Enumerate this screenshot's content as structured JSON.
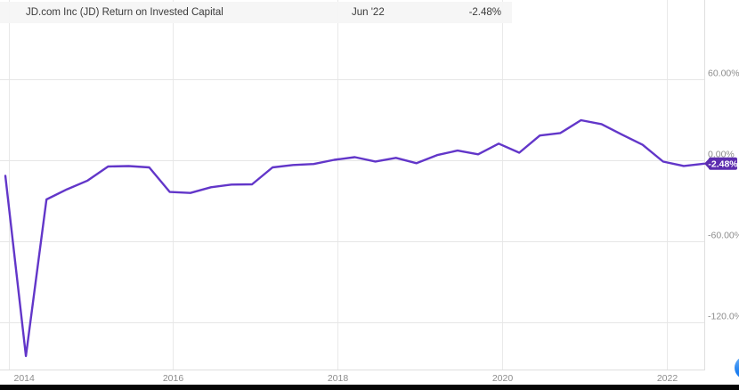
{
  "header": {
    "legend_label": "JD.com Inc (JD) Return on Invested Capital",
    "date_label": "Jun '22",
    "value_label": "-2.48%"
  },
  "badge": {
    "label": "-2.48%"
  },
  "chart_data": {
    "type": "line",
    "title": "JD.com Inc (JD) Return on Invested Capital",
    "series": [
      {
        "name": "JD.com Inc (JD) Return on Invested Capital",
        "unit": "%",
        "x": [
          "Dec '13",
          "Mar '14",
          "Jun '14",
          "Sep '14",
          "Dec '14",
          "Mar '15",
          "Jun '15",
          "Sep '15",
          "Dec '15",
          "Mar '16",
          "Jun '16",
          "Sep '16",
          "Dec '16",
          "Mar '17",
          "Jun '17",
          "Sep '17",
          "Dec '17",
          "Mar '18",
          "Jun '18",
          "Sep '18",
          "Dec '18",
          "Mar '19",
          "Jun '19",
          "Sep '19",
          "Dec '19",
          "Mar '20",
          "Jun '20",
          "Sep '20",
          "Dec '20",
          "Mar '21",
          "Jun '21",
          "Sep '21",
          "Dec '21",
          "Mar '22",
          "Jun '22"
        ],
        "values": [
          -11.5,
          -145,
          -29,
          -21.5,
          -15,
          -4.6,
          -4.3,
          -5.3,
          -23.5,
          -24.2,
          -20,
          -18,
          -17.8,
          -5.3,
          -3.5,
          -2.8,
          0.3,
          2.3,
          -0.9,
          1.8,
          -2.2,
          3.8,
          7.2,
          4.4,
          12.3,
          5.6,
          18.3,
          20.2,
          29.7,
          26.8,
          19,
          11.5,
          -1,
          -4.2,
          -2.48
        ]
      }
    ],
    "last_point": {
      "date": "Jun '22",
      "value": -2.48,
      "label": "-2.48%"
    },
    "x_ticks": [
      2014,
      2016,
      2018,
      2020,
      2022
    ],
    "y_ticks": [
      {
        "value": 60,
        "label": "60.00%"
      },
      {
        "value": 0,
        "label": "0.00%"
      },
      {
        "value": -60,
        "label": "-60.00%"
      },
      {
        "value": -120,
        "label": "-120.0%"
      }
    ],
    "xlim_years": [
      2013.96,
      2022.46
    ],
    "ylim": [
      -155,
      119
    ],
    "grid": true,
    "legend_position": "top-left",
    "line_color": "#6236c9",
    "badge_color": "#5c2daf",
    "colors": {
      "grid_h": "#e6e6e6",
      "grid_v": "#e9e9e9",
      "border": "#dfdfdf",
      "axis_text": "#8c8c8c",
      "legend_dot": "#6236c9"
    }
  },
  "misc": {
    "chat_button_color": "#1c7ef0",
    "bottom_bar_color": "#050505"
  }
}
